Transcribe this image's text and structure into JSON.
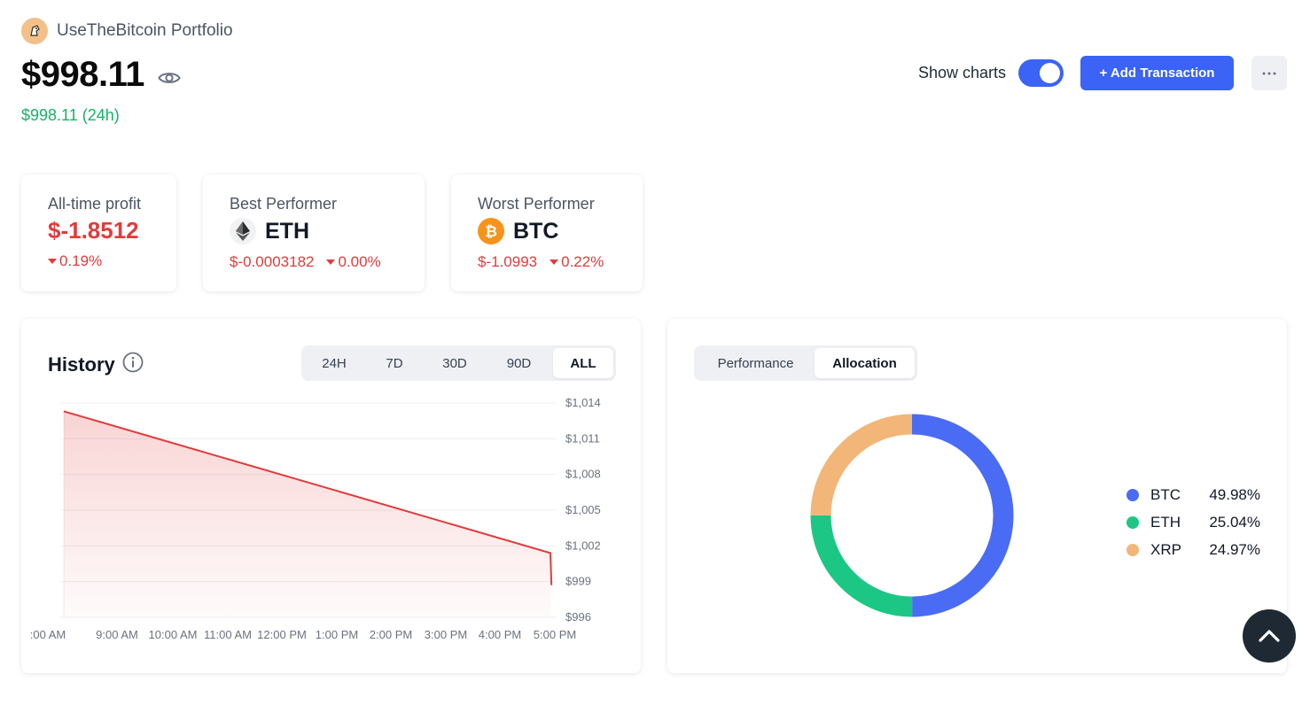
{
  "app": {
    "title": "UseTheBitcoin Portfolio"
  },
  "portfolio": {
    "balance": "$998.11",
    "change_24h": "$998.11 (24h)"
  },
  "controls": {
    "show_charts_label": "Show charts",
    "show_charts_on": true,
    "add_transaction_label": "+ Add Transaction"
  },
  "stats": {
    "all_time": {
      "label": "All-time profit",
      "value": "$-1.8512",
      "pct": "0.19%"
    },
    "best": {
      "label": "Best Performer",
      "coin": "ETH",
      "value": "$-0.0003182",
      "pct": "0.00%"
    },
    "worst": {
      "label": "Worst Performer",
      "coin": "BTC",
      "value": "$-1.0993",
      "pct": "0.22%"
    }
  },
  "history": {
    "title": "History",
    "ranges": [
      "24H",
      "7D",
      "30D",
      "90D",
      "ALL"
    ],
    "active_range": "ALL"
  },
  "chart_data": [
    {
      "type": "area",
      "title": "History",
      "x": [
        ":00 AM",
        "9:00 AM",
        "10:00 AM",
        "11:00 AM",
        "12:00 PM",
        "1:00 PM",
        "2:00 PM",
        "3:00 PM",
        "4:00 PM",
        "5:00 PM"
      ],
      "x_ticks": [
        ":00 AM",
        "9:00 AM",
        "10:00 AM",
        "11:00 AM",
        "12:00 PM",
        "1:00 PM",
        "2:00 PM",
        "3:00 PM",
        "4:00 PM",
        "5:00 PM"
      ],
      "y_ticks": [
        "$1,014",
        "$1,011",
        "$1,008",
        "$1,005",
        "$1,002",
        "$999",
        "$996"
      ],
      "ylim": [
        996,
        1014
      ],
      "points": [
        {
          "x": 0,
          "y": 1013.3
        },
        {
          "x": 9.1,
          "y": 1001.4
        },
        {
          "x": 9.12,
          "y": 998.7
        }
      ],
      "x_range": [
        0,
        9.2
      ],
      "color": "#e23b3b",
      "grid": true
    },
    {
      "type": "pie",
      "style": "donut",
      "labels": [
        "BTC",
        "ETH",
        "XRP"
      ],
      "values": [
        49.98,
        25.04,
        24.97
      ],
      "display": [
        "49.98%",
        "25.04%",
        "24.97%"
      ],
      "colors": [
        "#4a6cf5",
        "#1cc785",
        "#f2b679"
      ]
    }
  ],
  "allocation": {
    "tabs": [
      "Performance",
      "Allocation"
    ],
    "active_tab": "Allocation"
  },
  "colors": {
    "accent": "#3b63f5",
    "positive": "#16b364",
    "negative": "#e23b3b"
  },
  "icons": [
    "logo-icon",
    "eye-icon",
    "more-icon",
    "eth-icon",
    "btc-icon",
    "info-icon",
    "chevron-up-icon"
  ]
}
